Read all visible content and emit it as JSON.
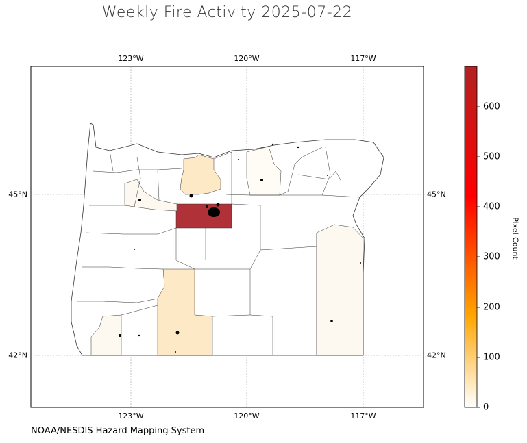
{
  "title": "Weekly Fire Activity 2025-07-22",
  "source": "NOAA/NESDIS Hazard Mapping System",
  "map": {
    "region": "Oregon counties",
    "lon_ticks": [
      "123°W",
      "120°W",
      "117°W"
    ],
    "lat_ticks": [
      "45°N",
      "42°N"
    ],
    "county_fill_colors": {
      "none": "#ffffff",
      "low": "#fef9f0",
      "medium": "#fde9c6",
      "high": "#b03238"
    }
  },
  "colorbar": {
    "label": "Pixel Count",
    "ticks": [
      "0",
      "100",
      "200",
      "300",
      "400",
      "500",
      "600"
    ],
    "min": 0,
    "max": 680,
    "colors": [
      "#ffffff",
      "#ffa500",
      "#ff0000",
      "#b22222"
    ]
  }
}
